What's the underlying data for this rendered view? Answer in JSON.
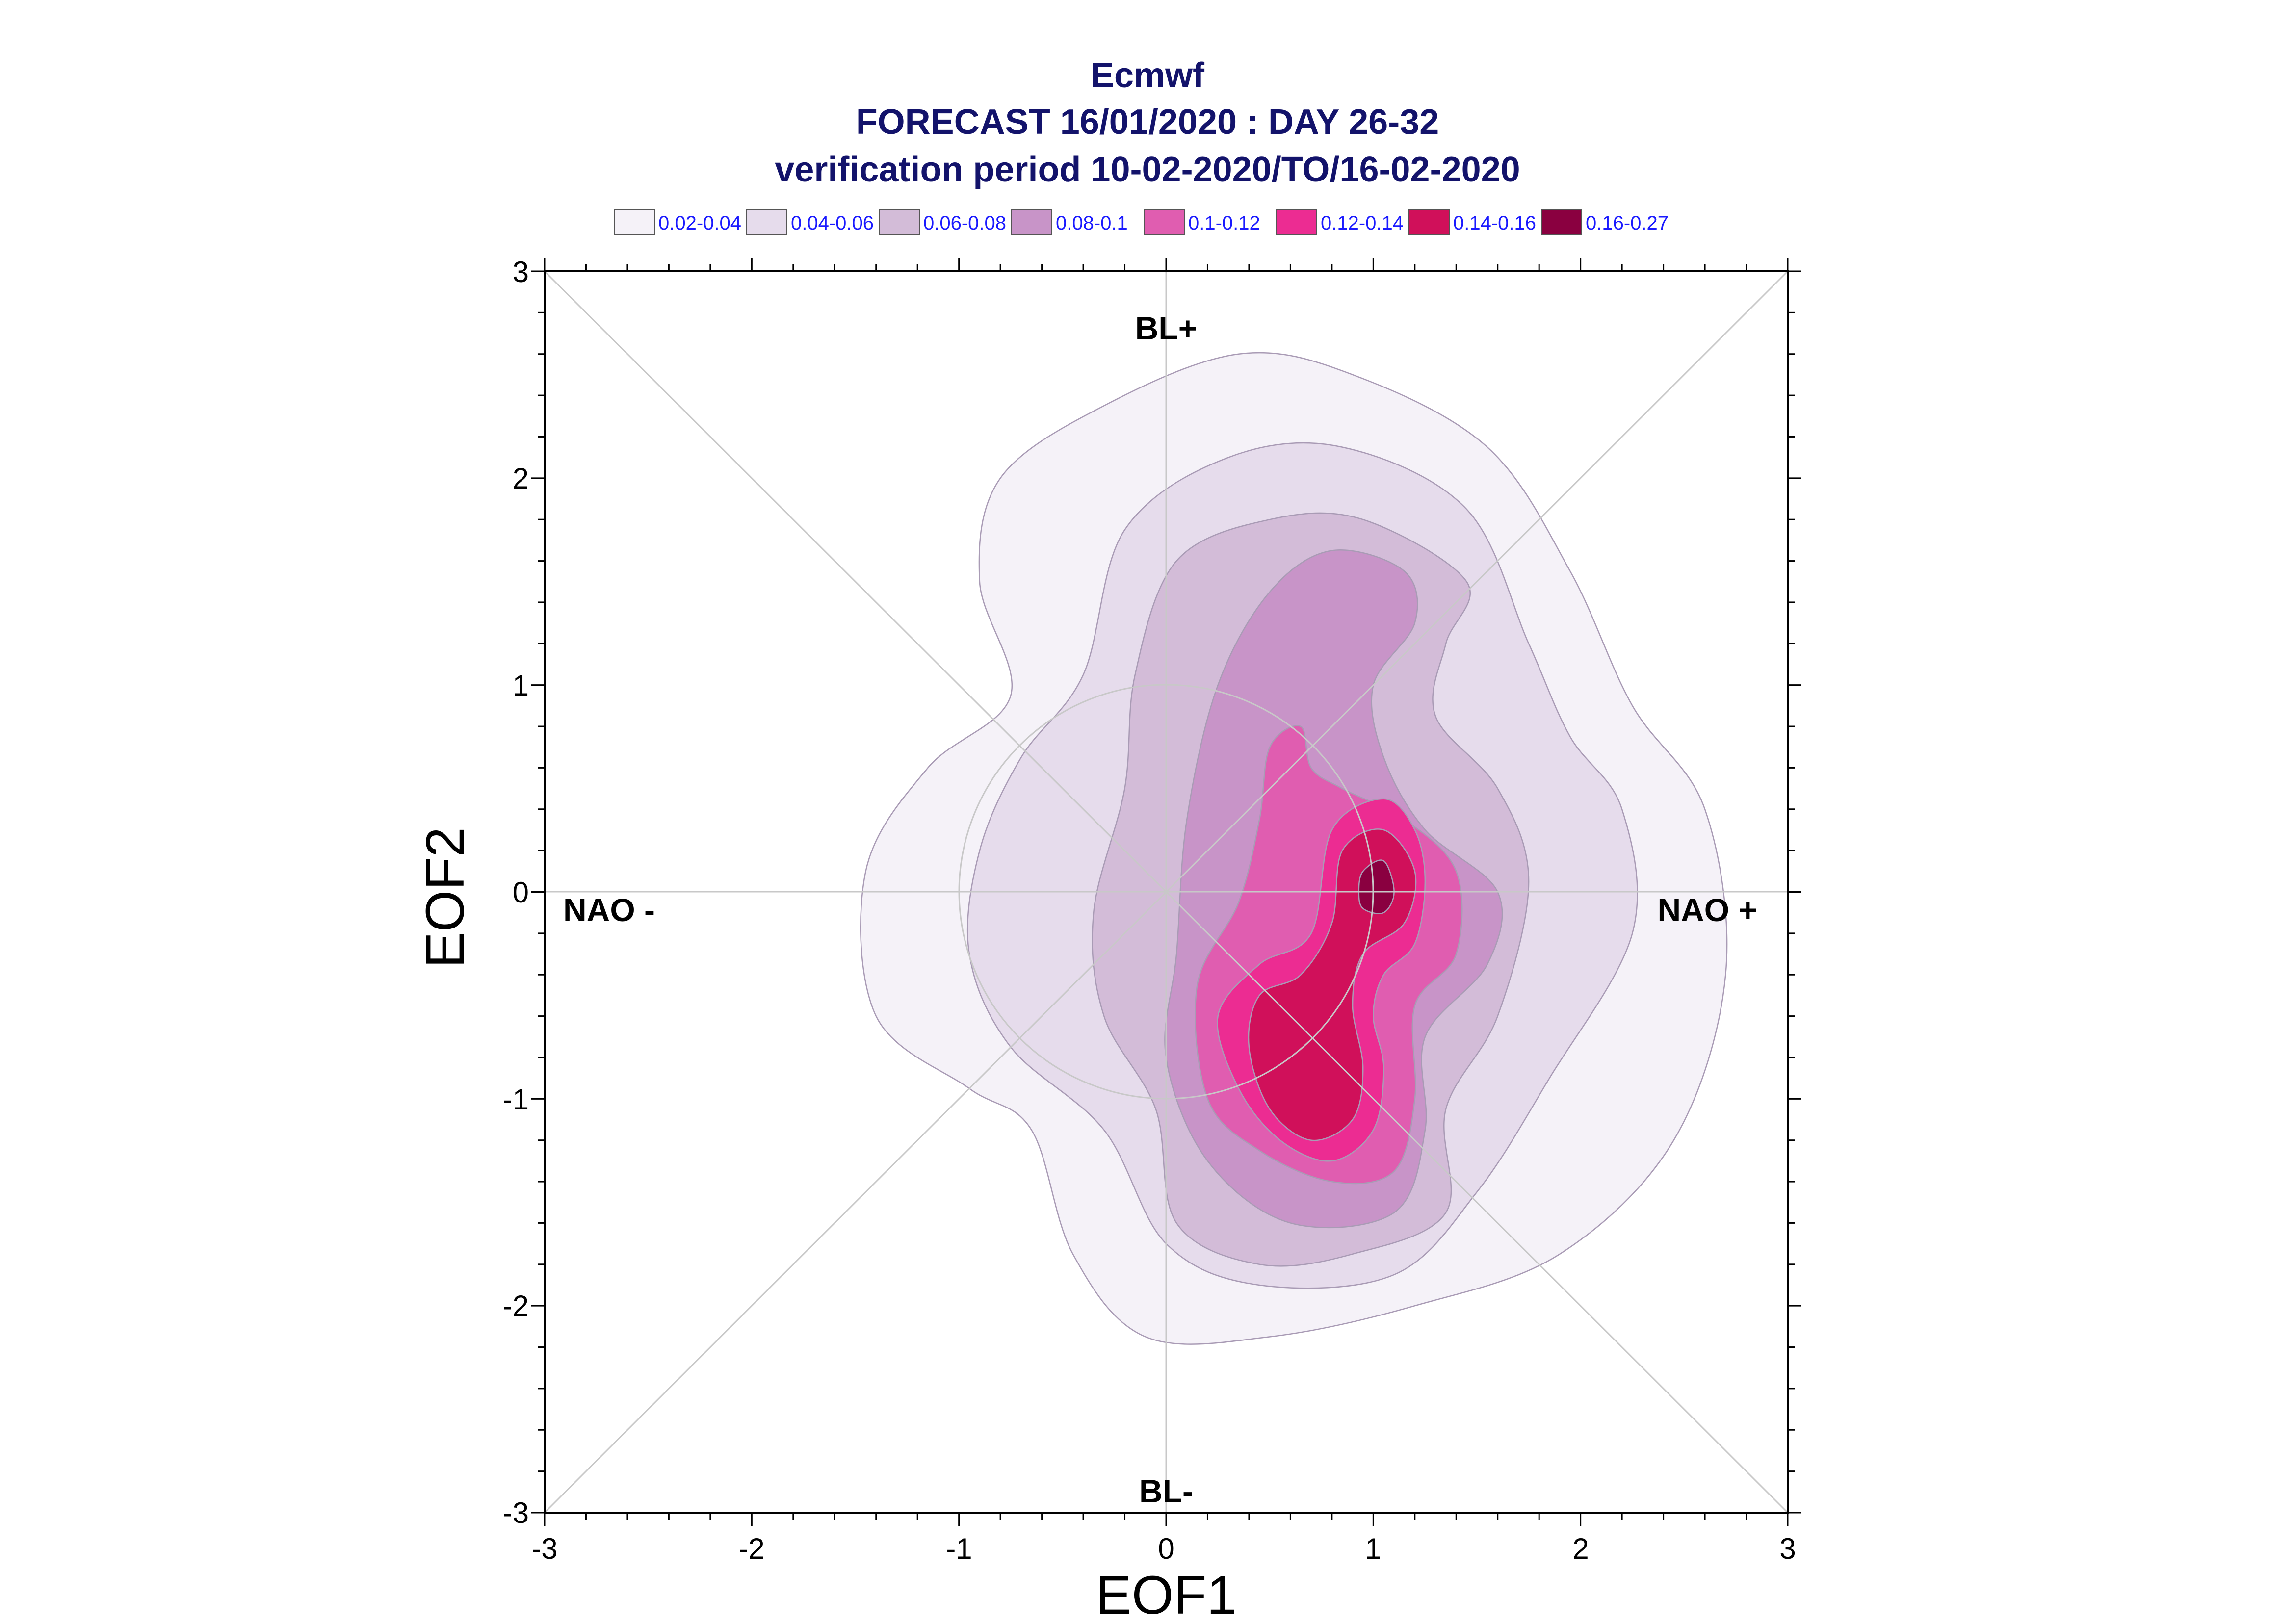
{
  "chart_data": {
    "type": "contour",
    "title_lines": [
      "Ecmwf",
      "FORECAST 16/01/2020 : DAY 26-32",
      "verification period 10-02-2020/TO/16-02-2020"
    ],
    "xlabel": "EOF1",
    "ylabel": "EOF2",
    "xlim": [
      -3,
      3
    ],
    "ylim": [
      -3,
      3
    ],
    "xticks": [
      "-3",
      "-2",
      "-1",
      "0",
      "1",
      "2",
      "3"
    ],
    "yticks": [
      "-3",
      "-2",
      "-1",
      "0",
      "1",
      "2",
      "3"
    ],
    "region_labels": {
      "top": "BL+",
      "bottom": "BL-",
      "left": "NAO -",
      "right": "NAO +"
    },
    "legend": [
      {
        "label": "0.02-0.04",
        "color": "#f5f2f8"
      },
      {
        "label": "0.04-0.06",
        "color": "#e6dcec"
      },
      {
        "label": "0.06-0.08",
        "color": "#d3bcd8"
      },
      {
        "label": "0.08-0.1",
        "color": "#c894c8"
      },
      {
        "label": "0.1-0.12",
        "color": "#e05db0"
      },
      {
        "label": "0.12-0.14",
        "color": "#ec2c92"
      },
      {
        "label": "0.14-0.16",
        "color": "#d0105a"
      },
      {
        "label": "0.16-0.27",
        "color": "#8a0040"
      }
    ],
    "reference_circle_radius": 1,
    "density_contours": [
      {
        "level": "0.02-0.04",
        "points": [
          [
            -0.8,
            2.0
          ],
          [
            -0.3,
            2.35
          ],
          [
            0.35,
            2.6
          ],
          [
            0.9,
            2.5
          ],
          [
            1.55,
            2.15
          ],
          [
            1.95,
            1.55
          ],
          [
            2.25,
            0.9
          ],
          [
            2.6,
            0.4
          ],
          [
            2.7,
            -0.4
          ],
          [
            2.45,
            -1.2
          ],
          [
            1.9,
            -1.75
          ],
          [
            1.2,
            -2.0
          ],
          [
            0.5,
            -2.15
          ],
          [
            -0.1,
            -2.15
          ],
          [
            -0.45,
            -1.75
          ],
          [
            -0.65,
            -1.15
          ],
          [
            -0.95,
            -0.95
          ],
          [
            -1.4,
            -0.6
          ],
          [
            -1.45,
            0.1
          ],
          [
            -1.15,
            0.6
          ],
          [
            -0.75,
            0.95
          ],
          [
            -0.9,
            1.5
          ]
        ]
      },
      {
        "level": "0.04-0.06",
        "points": [
          [
            -0.4,
            1.05
          ],
          [
            -0.2,
            1.75
          ],
          [
            0.3,
            2.1
          ],
          [
            0.85,
            2.15
          ],
          [
            1.45,
            1.85
          ],
          [
            1.75,
            1.2
          ],
          [
            1.95,
            0.75
          ],
          [
            2.2,
            0.4
          ],
          [
            2.25,
            -0.2
          ],
          [
            1.85,
            -0.9
          ],
          [
            1.5,
            -1.45
          ],
          [
            1.1,
            -1.85
          ],
          [
            0.45,
            -1.9
          ],
          [
            0.0,
            -1.7
          ],
          [
            -0.3,
            -1.15
          ],
          [
            -0.75,
            -0.75
          ],
          [
            -0.95,
            -0.3
          ],
          [
            -0.9,
            0.2
          ],
          [
            -0.7,
            0.65
          ]
        ]
      },
      {
        "level": "0.06-0.08",
        "points": [
          [
            -0.15,
            1.05
          ],
          [
            0.05,
            1.6
          ],
          [
            0.5,
            1.8
          ],
          [
            0.95,
            1.8
          ],
          [
            1.45,
            1.5
          ],
          [
            1.35,
            1.2
          ],
          [
            1.3,
            0.85
          ],
          [
            1.6,
            0.5
          ],
          [
            1.75,
            0.05
          ],
          [
            1.6,
            -0.6
          ],
          [
            1.35,
            -1.05
          ],
          [
            1.35,
            -1.55
          ],
          [
            0.9,
            -1.75
          ],
          [
            0.45,
            -1.8
          ],
          [
            0.05,
            -1.6
          ],
          [
            -0.05,
            -1.05
          ],
          [
            -0.3,
            -0.6
          ],
          [
            -0.35,
            -0.1
          ],
          [
            -0.2,
            0.5
          ]
        ]
      },
      {
        "level": "0.08-0.1",
        "points": [
          [
            0.25,
            1.0
          ],
          [
            0.5,
            1.45
          ],
          [
            0.8,
            1.65
          ],
          [
            1.15,
            1.55
          ],
          [
            1.2,
            1.3
          ],
          [
            1.0,
            1.0
          ],
          [
            1.05,
            0.65
          ],
          [
            1.25,
            0.3
          ],
          [
            1.6,
            0.0
          ],
          [
            1.55,
            -0.35
          ],
          [
            1.25,
            -0.7
          ],
          [
            1.25,
            -1.15
          ],
          [
            1.1,
            -1.55
          ],
          [
            0.6,
            -1.6
          ],
          [
            0.2,
            -1.3
          ],
          [
            0.0,
            -0.8
          ],
          [
            0.05,
            -0.3
          ],
          [
            0.1,
            0.35
          ]
        ]
      },
      {
        "level": "0.1-0.12",
        "points": [
          [
            0.5,
            0.7
          ],
          [
            0.65,
            0.8
          ],
          [
            0.7,
            0.6
          ],
          [
            0.85,
            0.5
          ],
          [
            1.15,
            0.35
          ],
          [
            1.4,
            0.1
          ],
          [
            1.4,
            -0.3
          ],
          [
            1.2,
            -0.55
          ],
          [
            1.2,
            -1.0
          ],
          [
            1.1,
            -1.35
          ],
          [
            0.8,
            -1.4
          ],
          [
            0.45,
            -1.25
          ],
          [
            0.2,
            -1.0
          ],
          [
            0.15,
            -0.45
          ],
          [
            0.35,
            -0.05
          ],
          [
            0.45,
            0.35
          ]
        ]
      },
      {
        "level": "0.12-0.14",
        "points": [
          [
            0.8,
            0.3
          ],
          [
            1.05,
            0.45
          ],
          [
            1.2,
            0.3
          ],
          [
            1.25,
            0.05
          ],
          [
            1.2,
            -0.25
          ],
          [
            1.05,
            -0.4
          ],
          [
            1.0,
            -0.6
          ],
          [
            1.05,
            -0.85
          ],
          [
            1.0,
            -1.15
          ],
          [
            0.8,
            -1.3
          ],
          [
            0.55,
            -1.2
          ],
          [
            0.35,
            -0.95
          ],
          [
            0.25,
            -0.6
          ],
          [
            0.45,
            -0.35
          ],
          [
            0.7,
            -0.2
          ]
        ]
      },
      {
        "level": "0.14-0.16",
        "points": [
          [
            0.85,
            0.2
          ],
          [
            1.05,
            0.3
          ],
          [
            1.2,
            0.1
          ],
          [
            1.15,
            -0.15
          ],
          [
            0.95,
            -0.3
          ],
          [
            0.9,
            -0.55
          ],
          [
            0.95,
            -0.85
          ],
          [
            0.9,
            -1.1
          ],
          [
            0.7,
            -1.2
          ],
          [
            0.5,
            -1.05
          ],
          [
            0.4,
            -0.75
          ],
          [
            0.45,
            -0.5
          ],
          [
            0.65,
            -0.4
          ],
          [
            0.8,
            -0.15
          ]
        ]
      },
      {
        "level": "0.16-0.27",
        "points": [
          [
            0.95,
            0.1
          ],
          [
            1.05,
            0.15
          ],
          [
            1.1,
            0.0
          ],
          [
            1.05,
            -0.1
          ],
          [
            0.95,
            -0.08
          ],
          [
            0.93,
            0.0
          ]
        ]
      }
    ]
  }
}
